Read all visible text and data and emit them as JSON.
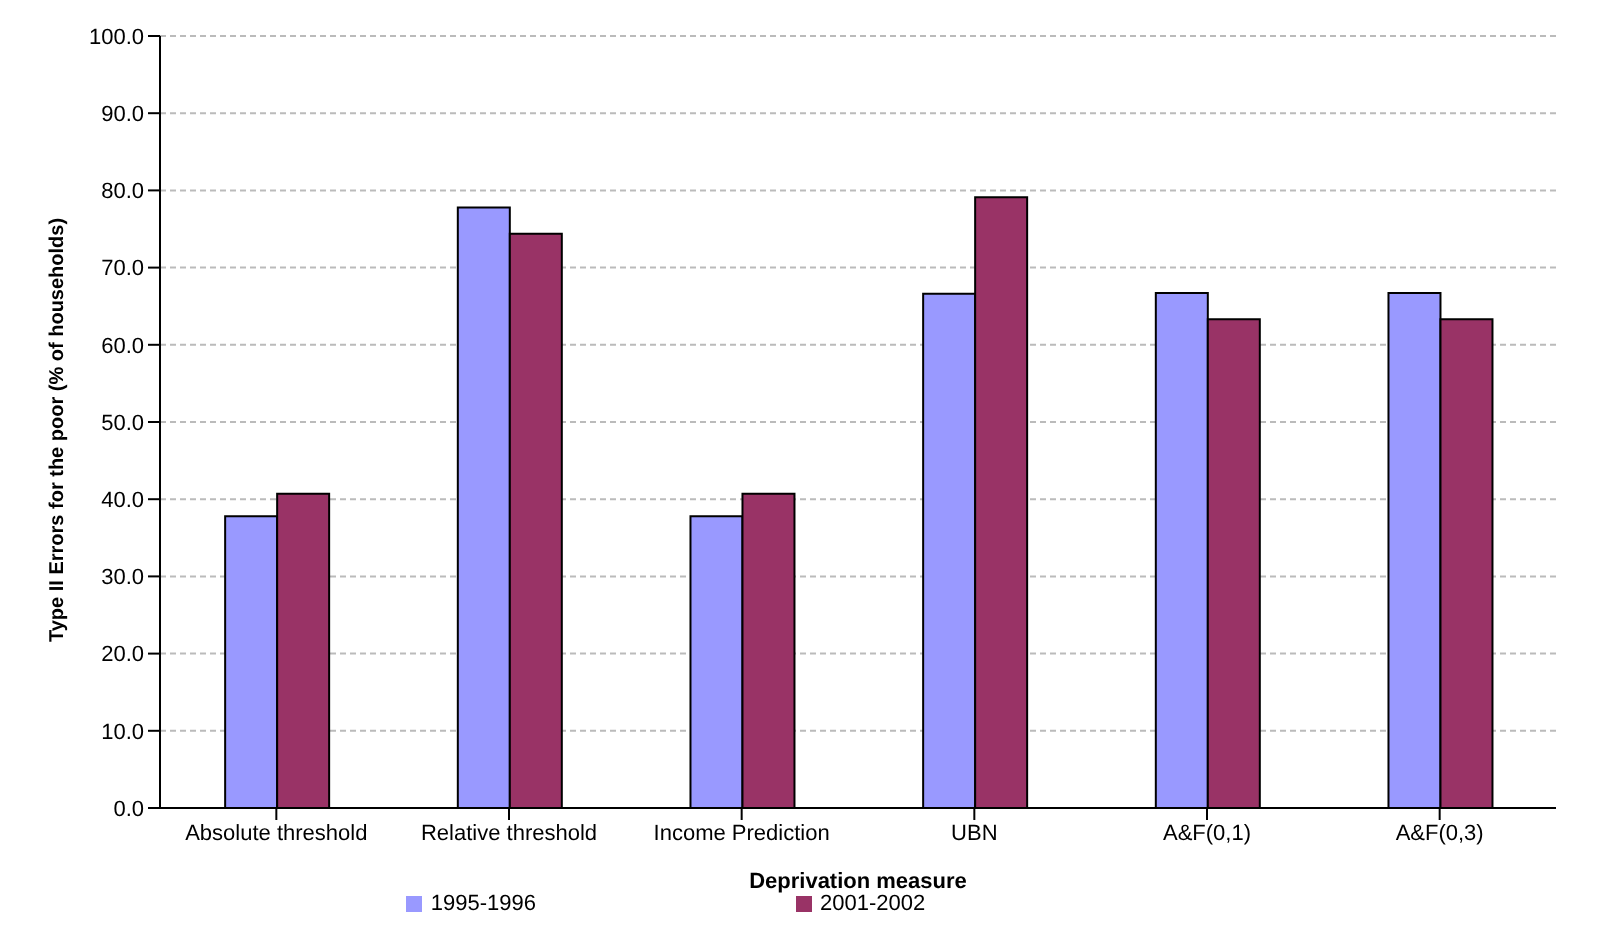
{
  "chart_data": {
    "type": "bar",
    "xlabel": "Deprivation measure",
    "ylabel": "Type II Errors for the poor (% of households)",
    "categories": [
      "Absolute threshold",
      "Relative threshold",
      "Income Prediction",
      "UBN",
      "A&F(0,1)",
      "A&F(0,3)"
    ],
    "series": [
      {
        "name": "1995-1996",
        "color": "#9999ff",
        "values": [
          37.8,
          77.8,
          37.8,
          66.6,
          66.7,
          66.7
        ]
      },
      {
        "name": "2001-2002",
        "color": "#993366",
        "values": [
          40.7,
          74.4,
          40.7,
          79.1,
          63.3,
          63.3
        ]
      }
    ],
    "ylim": [
      0,
      100
    ],
    "yticks": [
      {
        "value": 0,
        "label": "0.0"
      },
      {
        "value": 10,
        "label": "10.0"
      },
      {
        "value": 20,
        "label": "20.0"
      },
      {
        "value": 30,
        "label": "30.0"
      },
      {
        "value": 40,
        "label": "40.0"
      },
      {
        "value": 50,
        "label": "50.0"
      },
      {
        "value": 60,
        "label": "60.0"
      },
      {
        "value": 70,
        "label": "70.0"
      },
      {
        "value": 80,
        "label": "80.0"
      },
      {
        "value": 90,
        "label": "90.0"
      },
      {
        "value": 100,
        "label": "100.0"
      }
    ],
    "grid": "y",
    "legend": "bottom"
  }
}
